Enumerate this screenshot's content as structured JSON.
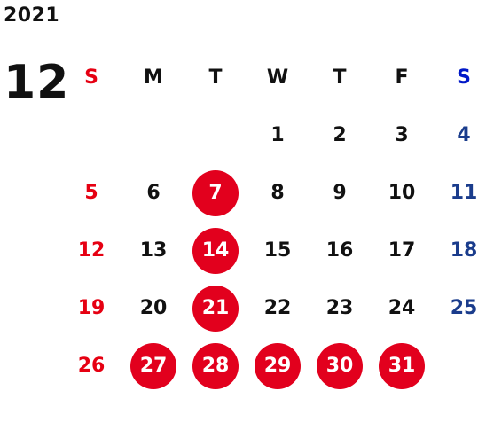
{
  "calendar": {
    "year": "2021",
    "month": "12",
    "weekdays": [
      "S",
      "M",
      "T",
      "W",
      "T",
      "F",
      "S"
    ],
    "start_offset": 3,
    "days": [
      {
        "d": "1"
      },
      {
        "d": "2"
      },
      {
        "d": "3"
      },
      {
        "d": "4"
      },
      {
        "d": "5"
      },
      {
        "d": "6"
      },
      {
        "d": "7",
        "marked": true
      },
      {
        "d": "8"
      },
      {
        "d": "9"
      },
      {
        "d": "10"
      },
      {
        "d": "11"
      },
      {
        "d": "12"
      },
      {
        "d": "13"
      },
      {
        "d": "14",
        "marked": true
      },
      {
        "d": "15"
      },
      {
        "d": "16"
      },
      {
        "d": "17"
      },
      {
        "d": "18"
      },
      {
        "d": "19"
      },
      {
        "d": "20"
      },
      {
        "d": "21",
        "marked": true
      },
      {
        "d": "22"
      },
      {
        "d": "23"
      },
      {
        "d": "24"
      },
      {
        "d": "25"
      },
      {
        "d": "26"
      },
      {
        "d": "27",
        "marked": true
      },
      {
        "d": "28",
        "marked": true
      },
      {
        "d": "29",
        "marked": true
      },
      {
        "d": "30",
        "marked": true
      },
      {
        "d": "31",
        "marked": true
      }
    ]
  },
  "colors": {
    "text": "#111111",
    "sunday": "#e60012",
    "saturday": "#1a3c8c",
    "saturday_header": "#0018c8",
    "marked_bg": "#e2001d",
    "marked_text": "#ffffff"
  }
}
